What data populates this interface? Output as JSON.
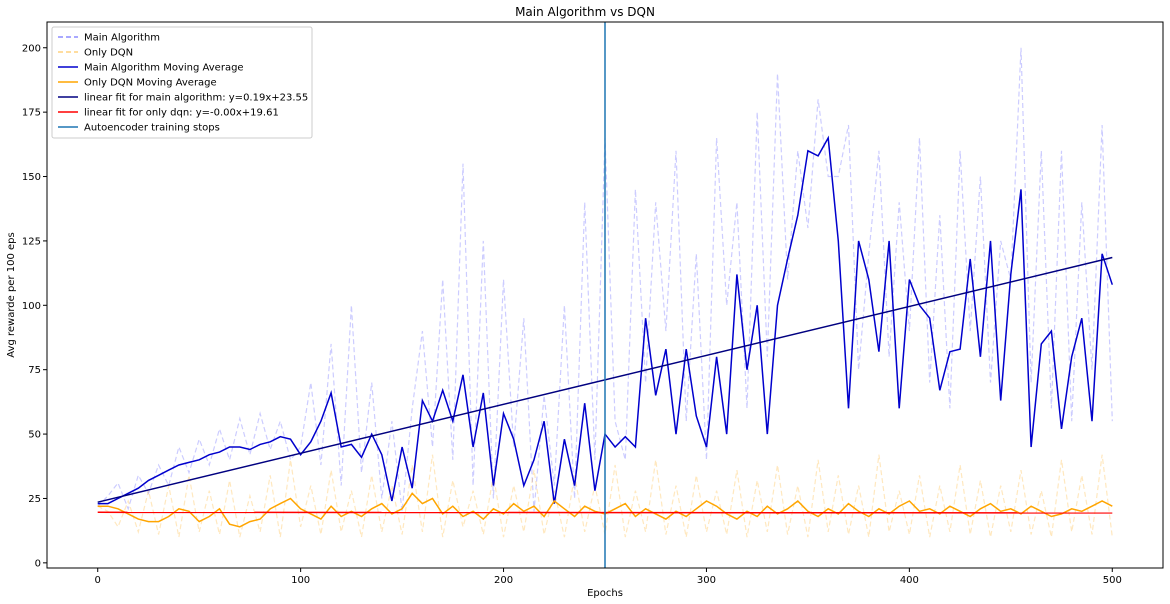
{
  "chart_data": {
    "type": "line",
    "title": "Main Algorithm vs DQN",
    "xlabel": "Epochs",
    "ylabel": "Avg rewarde per 100 eps",
    "xlim": [
      -25,
      525
    ],
    "ylim": [
      -2,
      210
    ],
    "xticks": [
      0,
      100,
      200,
      300,
      400,
      500
    ],
    "yticks": [
      0,
      25,
      50,
      75,
      100,
      125,
      150,
      175,
      200
    ],
    "grid": false,
    "legend_position": "top-left",
    "vline": {
      "x": 250,
      "name": "Autoencoder training stops",
      "color": "#1f77b4"
    },
    "series": [
      {
        "name": "Main Algorithm",
        "style": "dashed",
        "color": "#0000ff",
        "opacity": 0.2,
        "x": [
          0,
          5,
          10,
          15,
          20,
          25,
          30,
          35,
          40,
          45,
          50,
          55,
          60,
          65,
          70,
          75,
          80,
          85,
          90,
          95,
          100,
          105,
          110,
          115,
          120,
          125,
          130,
          135,
          140,
          145,
          150,
          155,
          160,
          165,
          170,
          175,
          180,
          185,
          190,
          195,
          200,
          205,
          210,
          215,
          220,
          225,
          230,
          235,
          240,
          245,
          250,
          255,
          260,
          265,
          270,
          275,
          280,
          285,
          290,
          295,
          300,
          305,
          310,
          315,
          320,
          325,
          330,
          335,
          340,
          345,
          350,
          355,
          360,
          365,
          370,
          375,
          380,
          385,
          390,
          395,
          400,
          405,
          410,
          415,
          420,
          425,
          430,
          435,
          440,
          445,
          450,
          455,
          460,
          465,
          470,
          475,
          480,
          485,
          490,
          495,
          500
        ],
        "values": [
          22,
          26,
          31,
          21,
          34,
          27,
          38,
          30,
          45,
          35,
          48,
          38,
          52,
          40,
          56,
          42,
          58,
          44,
          55,
          40,
          45,
          70,
          38,
          85,
          30,
          100,
          35,
          70,
          25,
          55,
          20,
          60,
          90,
          45,
          110,
          40,
          155,
          30,
          125,
          25,
          110,
          45,
          95,
          20,
          65,
          30,
          100,
          25,
          140,
          40,
          165,
          55,
          40,
          145,
          70,
          140,
          90,
          160,
          55,
          120,
          40,
          165,
          100,
          140,
          60,
          175,
          80,
          190,
          110,
          160,
          130,
          180,
          150,
          150,
          170,
          75,
          120,
          160,
          80,
          140,
          90,
          165,
          70,
          135,
          60,
          160,
          90,
          150,
          70,
          125,
          110,
          200,
          70,
          160,
          60,
          160,
          55,
          140,
          75,
          170,
          55
        ]
      },
      {
        "name": "Only DQN",
        "style": "dashed",
        "color": "#ffa500",
        "opacity": 0.25,
        "x": [
          0,
          5,
          10,
          15,
          20,
          25,
          30,
          35,
          40,
          45,
          50,
          55,
          60,
          65,
          70,
          75,
          80,
          85,
          90,
          95,
          100,
          105,
          110,
          115,
          120,
          125,
          130,
          135,
          140,
          145,
          150,
          155,
          160,
          165,
          170,
          175,
          180,
          185,
          190,
          195,
          200,
          205,
          210,
          215,
          220,
          225,
          230,
          235,
          240,
          245,
          250,
          255,
          260,
          265,
          270,
          275,
          280,
          285,
          290,
          295,
          300,
          305,
          310,
          315,
          320,
          325,
          330,
          335,
          340,
          345,
          350,
          355,
          360,
          365,
          370,
          375,
          380,
          385,
          390,
          395,
          400,
          405,
          410,
          415,
          420,
          425,
          430,
          435,
          440,
          445,
          450,
          455,
          460,
          465,
          470,
          475,
          480,
          485,
          490,
          495,
          500
        ],
        "values": [
          22,
          20,
          14,
          24,
          12,
          28,
          11,
          30,
          10,
          34,
          12,
          28,
          11,
          32,
          10,
          26,
          12,
          34,
          10,
          40,
          14,
          30,
          11,
          36,
          12,
          28,
          10,
          34,
          12,
          30,
          11,
          38,
          12,
          42,
          10,
          32,
          14,
          28,
          11,
          34,
          10,
          30,
          12,
          36,
          11,
          28,
          10,
          34,
          12,
          30,
          11,
          38,
          10,
          28,
          12,
          40,
          11,
          30,
          10,
          34,
          12,
          28,
          11,
          36,
          10,
          32,
          12,
          38,
          11,
          30,
          10,
          40,
          12,
          34,
          11,
          30,
          10,
          42,
          12,
          28,
          11,
          34,
          10,
          30,
          12,
          38,
          11,
          32,
          10,
          30,
          12,
          36,
          11,
          28,
          10,
          40,
          12,
          34,
          11,
          42,
          10
        ]
      },
      {
        "name": "Main Algorithm Moving Average",
        "style": "solid",
        "color": "#0000cd",
        "x": [
          0,
          5,
          10,
          15,
          20,
          25,
          30,
          35,
          40,
          45,
          50,
          55,
          60,
          65,
          70,
          75,
          80,
          85,
          90,
          95,
          100,
          105,
          110,
          115,
          120,
          125,
          130,
          135,
          140,
          145,
          150,
          155,
          160,
          165,
          170,
          175,
          180,
          185,
          190,
          195,
          200,
          205,
          210,
          215,
          220,
          225,
          230,
          235,
          240,
          245,
          250,
          255,
          260,
          265,
          270,
          275,
          280,
          285,
          290,
          295,
          300,
          305,
          310,
          315,
          320,
          325,
          330,
          335,
          340,
          345,
          350,
          355,
          360,
          365,
          370,
          375,
          380,
          385,
          390,
          395,
          400,
          405,
          410,
          415,
          420,
          425,
          430,
          435,
          440,
          445,
          450,
          455,
          460,
          465,
          470,
          475,
          480,
          485,
          490,
          495,
          500
        ],
        "values": [
          23,
          23,
          25,
          27,
          29,
          32,
          34,
          36,
          38,
          39,
          40,
          42,
          43,
          45,
          45,
          44,
          46,
          47,
          49,
          48,
          42,
          47,
          55,
          66,
          45,
          46,
          41,
          50,
          42,
          24,
          45,
          29,
          63,
          55,
          67,
          55,
          73,
          45,
          66,
          30,
          58,
          48,
          30,
          40,
          55,
          23,
          48,
          30,
          62,
          28,
          50,
          45,
          49,
          45,
          95,
          65,
          83,
          50,
          83,
          57,
          45,
          80,
          50,
          112,
          75,
          100,
          50,
          100,
          118,
          135,
          160,
          158,
          165,
          125,
          60,
          125,
          110,
          82,
          125,
          60,
          110,
          100,
          95,
          67,
          82,
          83,
          118,
          80,
          125,
          63,
          112,
          145,
          45,
          85,
          90,
          52,
          80,
          95,
          55,
          120,
          108
        ]
      },
      {
        "name": "Only DQN Moving Average",
        "style": "solid",
        "color": "#ffa500",
        "x": [
          0,
          5,
          10,
          15,
          20,
          25,
          30,
          35,
          40,
          45,
          50,
          55,
          60,
          65,
          70,
          75,
          80,
          85,
          90,
          95,
          100,
          105,
          110,
          115,
          120,
          125,
          130,
          135,
          140,
          145,
          150,
          155,
          160,
          165,
          170,
          175,
          180,
          185,
          190,
          195,
          200,
          205,
          210,
          215,
          220,
          225,
          230,
          235,
          240,
          245,
          250,
          255,
          260,
          265,
          270,
          275,
          280,
          285,
          290,
          295,
          300,
          305,
          310,
          315,
          320,
          325,
          330,
          335,
          340,
          345,
          350,
          355,
          360,
          365,
          370,
          375,
          380,
          385,
          390,
          395,
          400,
          405,
          410,
          415,
          420,
          425,
          430,
          435,
          440,
          445,
          450,
          455,
          460,
          465,
          470,
          475,
          480,
          485,
          490,
          495,
          500
        ],
        "values": [
          22,
          22,
          21,
          19,
          17,
          16,
          16,
          18,
          21,
          20,
          16,
          18,
          21,
          15,
          14,
          16,
          17,
          21,
          23,
          25,
          21,
          19,
          17,
          22,
          18,
          20,
          18,
          21,
          23,
          19,
          21,
          27,
          23,
          25,
          19,
          22,
          18,
          20,
          17,
          21,
          19,
          23,
          20,
          22,
          18,
          24,
          21,
          18,
          22,
          20,
          19,
          21,
          23,
          18,
          21,
          19,
          17,
          20,
          18,
          21,
          24,
          22,
          19,
          17,
          20,
          18,
          22,
          19,
          21,
          24,
          20,
          18,
          21,
          19,
          23,
          20,
          18,
          21,
          19,
          22,
          24,
          20,
          21,
          19,
          22,
          20,
          18,
          21,
          23,
          20,
          21,
          19,
          22,
          20,
          18,
          19,
          21,
          20,
          22,
          24,
          22
        ]
      },
      {
        "name": "linear fit for main algorithm: y=0.19x+23.55",
        "style": "solid",
        "color": "#000080",
        "x": [
          0,
          500
        ],
        "values": [
          23.55,
          118.55
        ]
      },
      {
        "name": "linear fit for only dqn: y=-0.00x+19.61",
        "style": "solid",
        "color": "#ff0000",
        "x": [
          0,
          500
        ],
        "values": [
          19.61,
          19.4
        ]
      }
    ]
  }
}
